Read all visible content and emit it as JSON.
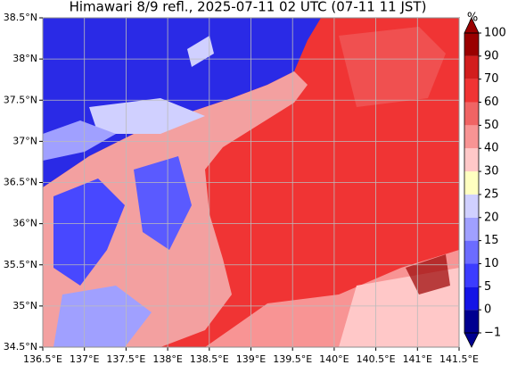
{
  "map": {
    "title": "Himawari 8/9 refl., 2025-07-11 02 UTC (07-11 11 JST)",
    "xlim": [
      136.5,
      141.5
    ],
    "ylim": [
      34.5,
      38.5
    ],
    "xticks": [
      {
        "value": 136.5,
        "label": "136.5°E"
      },
      {
        "value": 137,
        "label": "137°E"
      },
      {
        "value": 137.5,
        "label": "137.5°E"
      },
      {
        "value": 138,
        "label": "138°E"
      },
      {
        "value": 138.5,
        "label": "138.5°E"
      },
      {
        "value": 139,
        "label": "139°E"
      },
      {
        "value": 139.5,
        "label": "139.5°E"
      },
      {
        "value": 140,
        "label": "140°E"
      },
      {
        "value": 140.5,
        "label": "140.5°E"
      },
      {
        "value": 141,
        "label": "141°E"
      },
      {
        "value": 141.5,
        "label": "141.5°E"
      }
    ],
    "yticks": [
      {
        "value": 34.5,
        "label": "34.5°N"
      },
      {
        "value": 35,
        "label": "35°N"
      },
      {
        "value": 35.5,
        "label": "35.5°N"
      },
      {
        "value": 36,
        "label": "36°N"
      },
      {
        "value": 36.5,
        "label": "36.5°N"
      },
      {
        "value": 37,
        "label": "37°N"
      },
      {
        "value": 37.5,
        "label": "37.5°N"
      },
      {
        "value": 38,
        "label": "38°N"
      },
      {
        "value": 38.5,
        "label": "38.5°N"
      }
    ],
    "colorbar": {
      "unit": "%",
      "ticks": [
        {
          "value": -1,
          "label": "−1"
        },
        0,
        5,
        10,
        15,
        20,
        25,
        30,
        40,
        50,
        60,
        70,
        90,
        100
      ],
      "colors": [
        "#000090",
        "#1414e6",
        "#3c3cff",
        "#6c6cff",
        "#a0a0ff",
        "#d0d0ff",
        "#ffffc0",
        "#ffc8c8",
        "#f89494",
        "#f06464",
        "#f03434",
        "#d21e1e",
        "#9a0000"
      ]
    }
  }
}
